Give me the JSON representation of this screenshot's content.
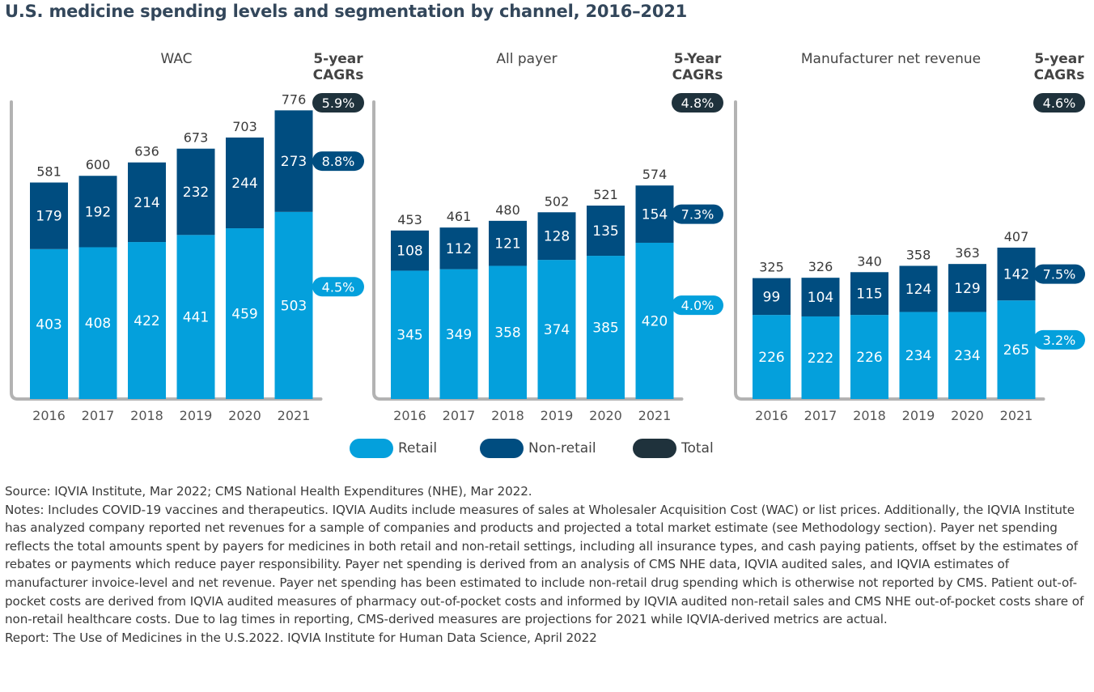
{
  "title": "U.S. medicine spending levels and segmentation by channel, 2016–2021",
  "colors": {
    "retail": "#04a0dc",
    "non_retail": "#004d80",
    "total": "#1f323c",
    "axis": "#b3b3b3",
    "value_text": "#ffffff",
    "total_text": "#3a3a3a"
  },
  "chart_data": [
    {
      "type": "bar",
      "stacked": true,
      "title": "WAC",
      "cagr_header": "5-year\nCAGRs",
      "categories": [
        "2016",
        "2017",
        "2018",
        "2019",
        "2020",
        "2021"
      ],
      "series": [
        {
          "name": "Retail",
          "values": [
            403,
            408,
            422,
            441,
            459,
            503
          ]
        },
        {
          "name": "Non-retail",
          "values": [
            179,
            192,
            214,
            232,
            244,
            273
          ]
        }
      ],
      "totals": [
        581,
        600,
        636,
        673,
        703,
        776
      ],
      "cagr": {
        "total": "5.9%",
        "non_retail": "8.8%",
        "retail": "4.5%"
      },
      "ylim": [
        0,
        820
      ]
    },
    {
      "type": "bar",
      "stacked": true,
      "title": "All payer",
      "cagr_header": "5-Year\nCAGRs",
      "categories": [
        "2016",
        "2017",
        "2018",
        "2019",
        "2020",
        "2021"
      ],
      "series": [
        {
          "name": "Retail",
          "values": [
            345,
            349,
            358,
            374,
            385,
            420
          ]
        },
        {
          "name": "Non-retail",
          "values": [
            108,
            112,
            121,
            128,
            135,
            154
          ]
        }
      ],
      "totals": [
        453,
        461,
        480,
        502,
        521,
        574
      ],
      "cagr": {
        "total": "4.8%",
        "non_retail": "7.3%",
        "retail": "4.0%"
      },
      "ylim": [
        0,
        820
      ]
    },
    {
      "type": "bar",
      "stacked": true,
      "title": "Manufacturer net revenue",
      "cagr_header": "5-year\nCAGRs",
      "categories": [
        "2016",
        "2017",
        "2018",
        "2019",
        "2020",
        "2021"
      ],
      "series": [
        {
          "name": "Retail",
          "values": [
            226,
            222,
            226,
            234,
            234,
            265
          ]
        },
        {
          "name": "Non-retail",
          "values": [
            99,
            104,
            115,
            124,
            129,
            142
          ]
        }
      ],
      "totals": [
        325,
        326,
        340,
        358,
        363,
        407
      ],
      "cagr": {
        "total": "4.6%",
        "non_retail": "7.5%",
        "retail": "3.2%"
      },
      "ylim": [
        0,
        820
      ]
    }
  ],
  "legend": [
    {
      "label": "Retail",
      "color": "#04a0dc"
    },
    {
      "label": "Non-retail",
      "color": "#004d80"
    },
    {
      "label": "Total",
      "color": "#1f323c"
    }
  ],
  "notes": {
    "source": "Source: IQVIA Institute, Mar 2022; CMS National Health Expenditures (NHE), Mar 2022.",
    "notes": "Notes: Includes COVID-19 vaccines and therapeutics. IQVIA Audits include measures of sales at Wholesaler Acquisition Cost (WAC) or list prices. Additionally, the IQVIA Institute has analyzed company reported net revenues for a sample of companies and products and projected a total market estimate (see Methodology section). Payer net spending reflects the total amounts spent by payers for medicines in both retail and non-retail settings, including all insurance types, and cash paying patients, offset by the estimates of rebates or payments which reduce payer responsibility. Payer net spending is derived from an analysis of CMS NHE data, IQVIA audited sales, and IQVIA estimates of manufacturer invoice-level and net revenue. Payer net spending has been estimated to include non-retail drug spending which is otherwise not reported by CMS. Patient out-of-pocket costs are derived from IQVIA audited measures of pharmacy out-of-pocket costs and informed by IQVIA audited non-retail sales and CMS NHE out-of-pocket costs share of non-retail healthcare costs. Due to lag times in reporting, CMS-derived measures are projections for 2021 while IQVIA-derived metrics are actual.",
    "report": "Report: The Use of Medicines in the U.S.2022. IQVIA Institute for Human Data Science, April 2022"
  }
}
